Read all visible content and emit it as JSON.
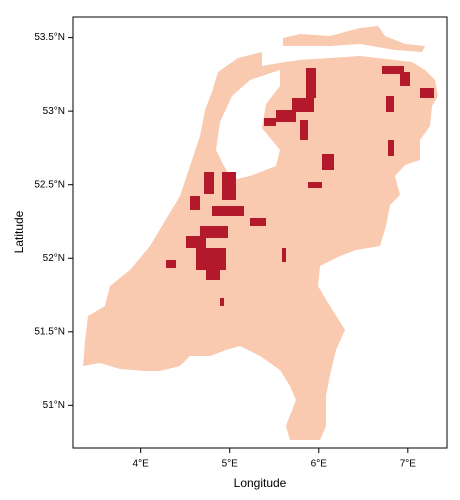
{
  "chart_data": {
    "type": "map",
    "x_label": "Longitude",
    "y_label": "Latitude",
    "xlim": [
      3.24,
      7.44
    ],
    "ylim": [
      50.71,
      53.64
    ],
    "xticks": [
      {
        "value": 4,
        "label": "4°E"
      },
      {
        "value": 5,
        "label": "5°E"
      },
      {
        "value": 6,
        "label": "6°E"
      },
      {
        "value": 7,
        "label": "7°E"
      }
    ],
    "yticks": [
      {
        "value": 51,
        "label": "51°N"
      },
      {
        "value": 51.5,
        "label": "51.5°N"
      },
      {
        "value": 52,
        "label": "52°N"
      },
      {
        "value": 52.5,
        "label": "52.5°N"
      },
      {
        "value": 53,
        "label": "53°N"
      },
      {
        "value": 53.5,
        "label": "53.5°N"
      }
    ],
    "land_color": "#f9c9b0",
    "highlight_color": "#b3192b"
  }
}
